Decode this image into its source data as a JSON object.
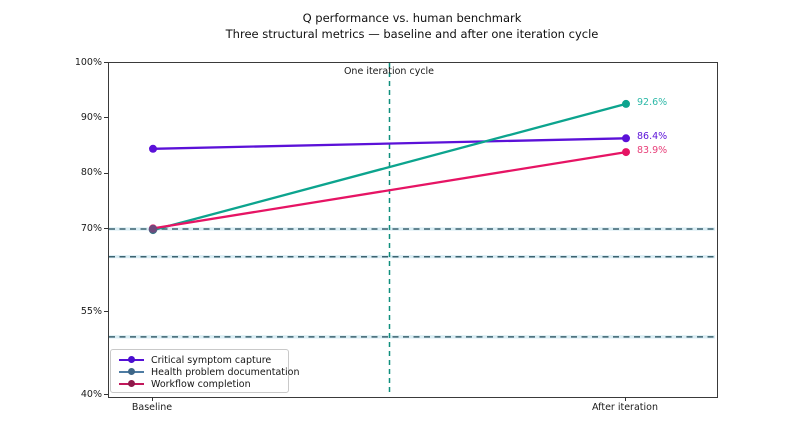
{
  "figure": {
    "title": "Q performance vs. human benchmark",
    "subtitle": "Three structural metrics — baseline and after one iteration cycle"
  },
  "chart_data": {
    "type": "line",
    "title": "Q performance vs. human benchmark",
    "subtitle": "Three structural metrics — baseline and after one iteration cycle",
    "categories": [
      "Baseline",
      "After iteration"
    ],
    "y_axis": {
      "min": 40,
      "max": 100,
      "ticks": [
        100,
        90,
        80,
        70,
        55,
        40
      ],
      "tick_labels": [
        "100%",
        "90%",
        "80%",
        "70%",
        "55%",
        "40%"
      ]
    },
    "series": [
      {
        "name": "Critical symptom capture",
        "values": [
          84.5,
          86.4
        ],
        "end_label": "86.4%",
        "color": "#5b11d8",
        "end_label_color": "#5b11d8",
        "legend_line_color": "#5510d6",
        "legend_marker_color": "#4a0ecf"
      },
      {
        "name": "Health problem documentation",
        "values": [
          69.8,
          92.6
        ],
        "end_label": "92.6%",
        "color": "#0ca48e",
        "end_label_color": "#2db9a8",
        "legend_line_color": "#4e7ca3",
        "legend_marker_color": "#3d6687"
      },
      {
        "name": "Workflow completion",
        "values": [
          70.1,
          83.9
        ],
        "end_label": "83.9%",
        "color": "#e61464",
        "end_label_color": "#e8407a",
        "legend_line_color": "#c2185b",
        "legend_marker_color": "#8e1a4b"
      }
    ],
    "human_benchmark_lines": {
      "values": [
        70,
        65,
        50.5
      ],
      "dash_color": "#3c6370",
      "halo_color": "#d9edf4"
    },
    "iteration_marker": {
      "x_fraction": 0.5,
      "label": "One iteration cycle",
      "color": "#0f8f7d"
    },
    "legend_position": "lower-left",
    "grid": false
  }
}
